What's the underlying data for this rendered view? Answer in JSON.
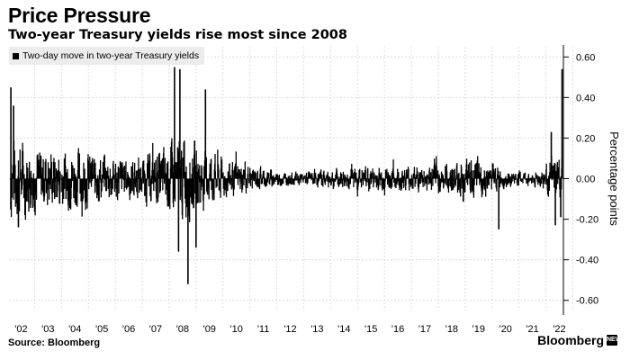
{
  "header": {
    "title": "Price Pressure",
    "subtitle": "Two-year Treasury yields rise most since 2008"
  },
  "footer": {
    "source": "Source: Bloomberg",
    "brand": "Bloomberg",
    "brand_badge": "NEW"
  },
  "colors": {
    "series": "#000000",
    "grid": "#dcdcdc",
    "legend_bg": "#ececec"
  },
  "chart_data": {
    "type": "bar",
    "title": "Price Pressure",
    "subtitle": "Two-year Treasury yields rise most since 2008",
    "ylabel": "Percentage points",
    "xlabel": "",
    "legend": {
      "position": "top-left",
      "entries": [
        "Two-day move in two-year Treasury yields"
      ]
    },
    "grid": true,
    "y_axis_side": "right",
    "ylim": [
      -0.65,
      0.65
    ],
    "yticks": [
      0.6,
      0.4,
      0.2,
      0.0,
      -0.2,
      -0.4,
      -0.6
    ],
    "ytick_labels": [
      "0.60",
      "0.40",
      "0.20",
      "0.00",
      "-0.20",
      "-0.40",
      "-0.60"
    ],
    "xlim": [
      2001.55,
      2022.15
    ],
    "xtick_labels": [
      "'02",
      "'03",
      "'04",
      "'05",
      "'06",
      "'07",
      "'08",
      "'09",
      "'10",
      "'11",
      "'12",
      "'13",
      "'14",
      "'15",
      "'16",
      "'17",
      "'18",
      "'19",
      "'20",
      "'21",
      "'22"
    ],
    "xtick_years": [
      2002,
      2003,
      2004,
      2005,
      2006,
      2007,
      2008,
      2009,
      2010,
      2011,
      2012,
      2013,
      2014,
      2015,
      2016,
      2017,
      2018,
      2019,
      2020,
      2021,
      2022
    ],
    "series": [
      {
        "name": "Two-day move in two-year Treasury yields",
        "envelope_note": "approximate typical daily range per year, read from the figure",
        "year": [
          2001.6,
          2002,
          2003,
          2004,
          2005,
          2006,
          2007,
          2008,
          2009,
          2010,
          2011,
          2012,
          2013,
          2014,
          2015,
          2016,
          2017,
          2018,
          2019,
          2020,
          2021,
          2022
        ],
        "typical_amplitude": [
          0.22,
          0.17,
          0.14,
          0.14,
          0.11,
          0.1,
          0.12,
          0.2,
          0.12,
          0.08,
          0.05,
          0.03,
          0.04,
          0.05,
          0.06,
          0.06,
          0.06,
          0.08,
          0.09,
          0.04,
          0.03,
          0.1
        ],
        "spikes": [
          {
            "x": 2001.62,
            "y": 0.45
          },
          {
            "x": 2001.72,
            "y": 0.36
          },
          {
            "x": 2001.9,
            "y": -0.24
          },
          {
            "x": 2007.7,
            "y": 0.55
          },
          {
            "x": 2007.9,
            "y": 0.54
          },
          {
            "x": 2007.85,
            "y": -0.36
          },
          {
            "x": 2008.2,
            "y": -0.52
          },
          {
            "x": 2008.5,
            "y": -0.34
          },
          {
            "x": 2008.85,
            "y": 0.44
          },
          {
            "x": 2019.75,
            "y": -0.25
          },
          {
            "x": 2021.7,
            "y": 0.23
          },
          {
            "x": 2021.85,
            "y": -0.23
          },
          {
            "x": 2022.05,
            "y": -0.19
          },
          {
            "x": 2022.1,
            "y": 0.54
          }
        ]
      }
    ]
  }
}
